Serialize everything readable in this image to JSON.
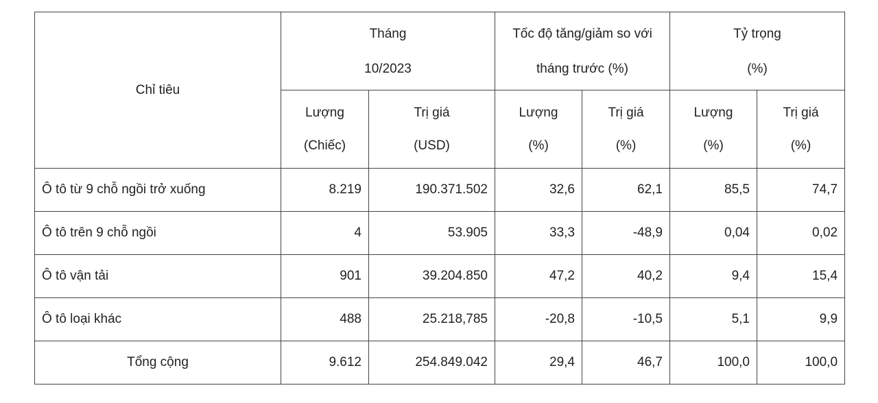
{
  "header": {
    "indicator": "Chỉ tiêu",
    "group_month": [
      "Tháng",
      "10/2023"
    ],
    "group_growth": [
      "Tốc độ tăng/giảm so với",
      "tháng trước (%)"
    ],
    "group_share": [
      "Tỷ trọng",
      "(%)"
    ],
    "sub": {
      "month_qty": [
        "Lượng",
        "(Chiếc)"
      ],
      "month_val": [
        "Trị giá",
        "(USD)"
      ],
      "growth_qty": [
        "Lượng",
        "(%)"
      ],
      "growth_val": [
        "Trị giá",
        "(%)"
      ],
      "share_qty": [
        "Lượng",
        "(%)"
      ],
      "share_val": [
        "Trị giá",
        "(%)"
      ]
    }
  },
  "rows": [
    {
      "label": "Ô tô từ 9 chỗ ngồi trở xuống",
      "cells": [
        "8.219",
        "190.371.502",
        "32,6",
        "62,1",
        "85,5",
        "74,7"
      ]
    },
    {
      "label": "Ô tô trên 9 chỗ ngồi",
      "cells": [
        "4",
        "53.905",
        "33,3",
        "-48,9",
        "0,04",
        "0,02"
      ]
    },
    {
      "label": "Ô tô vận tải",
      "cells": [
        "901",
        "39.204.850",
        "47,2",
        "40,2",
        "9,4",
        "15,4"
      ]
    },
    {
      "label": "Ô tô loại khác",
      "cells": [
        "488",
        "25.218,785",
        "-20,8",
        "-10,5",
        "5,1",
        "9,9"
      ]
    }
  ],
  "total": {
    "label": "Tổng cộng",
    "cells": [
      "9.612",
      "254.849.042",
      "29,4",
      "46,7",
      "100,0",
      "100,0"
    ]
  }
}
